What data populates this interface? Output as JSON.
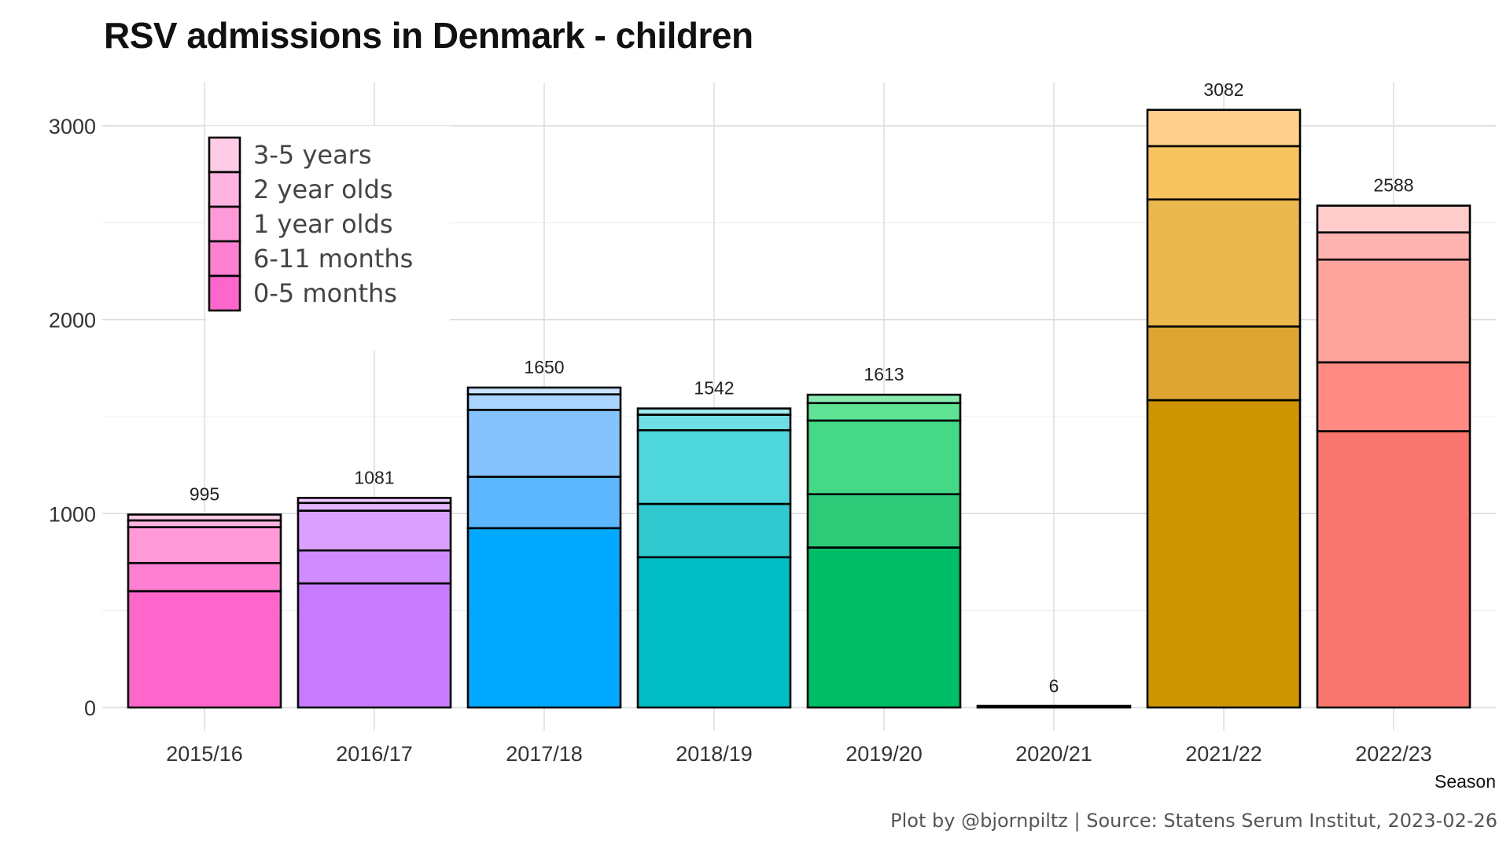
{
  "title": "RSV admissions in Denmark - children",
  "caption": "Plot by @bjornpiltz | Source: Statens Serum Institut, 2023-02-26",
  "chart_data": {
    "type": "bar",
    "stacked": true,
    "title": "RSV admissions in Denmark - children",
    "xlabel": "Season",
    "ylabel": "",
    "ylim": [
      0,
      3200
    ],
    "yticks": [
      0,
      1000,
      2000,
      3000
    ],
    "grid": true,
    "legend_position": "top-left",
    "categories": [
      "2015/16",
      "2016/17",
      "2017/18",
      "2018/19",
      "2019/20",
      "2020/21",
      "2021/22",
      "2022/23"
    ],
    "totals": [
      995,
      1081,
      1650,
      1542,
      1613,
      6,
      3082,
      2588
    ],
    "series": [
      {
        "name": "0-5 months",
        "values": [
          600,
          640,
          925,
          775,
          825,
          6,
          1585,
          1425
        ]
      },
      {
        "name": "6-11 months",
        "values": [
          145,
          170,
          265,
          275,
          275,
          0,
          380,
          355
        ]
      },
      {
        "name": "1 year olds",
        "values": [
          185,
          205,
          345,
          380,
          380,
          0,
          655,
          530
        ]
      },
      {
        "name": "2 year olds",
        "values": [
          35,
          40,
          80,
          80,
          90,
          0,
          275,
          140
        ]
      },
      {
        "name": "3-5 years",
        "values": [
          30,
          26,
          35,
          32,
          43,
          0,
          187,
          138
        ]
      }
    ],
    "colors": [
      [
        "#ff66cc",
        "#ff80d2",
        "#ff99d8",
        "#ffb3e0",
        "#ffcce8"
      ],
      [
        "#c77cff",
        "#d08cff",
        "#d9a0ff",
        "#e3b5ff",
        "#edccff"
      ],
      [
        "#00a9ff",
        "#5cb7ff",
        "#85c3ff",
        "#a9d4ff",
        "#c8e3ff"
      ],
      [
        "#00bec4",
        "#30c9cf",
        "#4dd6db",
        "#6fdfe3",
        "#9eeaec"
      ],
      [
        "#00be67",
        "#2dcb78",
        "#45d987",
        "#5ee394",
        "#8aebb0"
      ],
      [
        "#000000",
        "#000000",
        "#000000",
        "#000000",
        "#000000"
      ],
      [
        "#cd9600",
        "#dca630",
        "#ebb84d",
        "#f6c35c",
        "#ffd08c"
      ],
      [
        "#f8766d",
        "#ff8b84",
        "#ffa39d",
        "#ffb3b0",
        "#ffcccb"
      ]
    ]
  }
}
